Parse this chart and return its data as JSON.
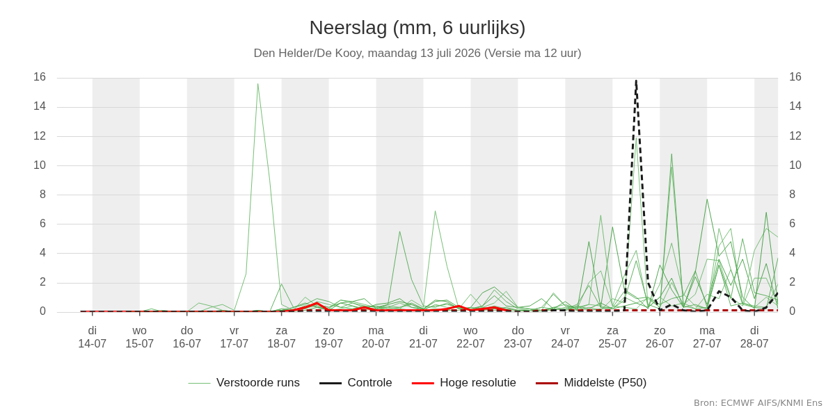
{
  "chart_data": {
    "type": "line",
    "title": "Neerslag (mm, 6 uurlijks)",
    "subtitle": "Den Helder/De Kooy, maandag 13 juli 2026 (Versie ma 12 uur)",
    "annotations": [
      "Bron: ECMWF AIFS/KNMI Ens"
    ],
    "x": [
      "2026-07-13T18:00",
      "2026-07-14T00:00",
      "2026-07-14T06:00",
      "2026-07-14T12:00",
      "2026-07-14T18:00",
      "2026-07-15T00:00",
      "2026-07-15T06:00",
      "2026-07-15T12:00",
      "2026-07-15T18:00",
      "2026-07-16T00:00",
      "2026-07-16T06:00",
      "2026-07-16T12:00",
      "2026-07-16T18:00",
      "2026-07-17T00:00",
      "2026-07-17T06:00",
      "2026-07-17T12:00",
      "2026-07-17T18:00",
      "2026-07-18T00:00",
      "2026-07-18T06:00",
      "2026-07-18T12:00",
      "2026-07-18T18:00",
      "2026-07-19T00:00",
      "2026-07-19T06:00",
      "2026-07-19T12:00",
      "2026-07-19T18:00",
      "2026-07-20T00:00",
      "2026-07-20T06:00",
      "2026-07-20T12:00",
      "2026-07-20T18:00",
      "2026-07-21T00:00",
      "2026-07-21T06:00",
      "2026-07-21T12:00",
      "2026-07-21T18:00",
      "2026-07-22T00:00",
      "2026-07-22T06:00",
      "2026-07-22T12:00",
      "2026-07-22T18:00",
      "2026-07-23T00:00",
      "2026-07-23T06:00",
      "2026-07-23T12:00",
      "2026-07-23T18:00",
      "2026-07-24T00:00",
      "2026-07-24T06:00",
      "2026-07-24T12:00",
      "2026-07-24T18:00",
      "2026-07-25T00:00",
      "2026-07-25T06:00",
      "2026-07-25T12:00",
      "2026-07-25T18:00",
      "2026-07-26T00:00",
      "2026-07-26T06:00",
      "2026-07-26T12:00",
      "2026-07-26T18:00",
      "2026-07-27T00:00",
      "2026-07-27T06:00",
      "2026-07-27T12:00",
      "2026-07-27T18:00",
      "2026-07-28T00:00",
      "2026-07-28T06:00",
      "2026-07-28T12:00"
    ],
    "xlim": [
      "2026-07-13T06:00",
      "2026-07-28T12:00"
    ],
    "xticks": [
      {
        "value": "2026-07-14",
        "label": "di 14-07"
      },
      {
        "value": "2026-07-15",
        "label": "wo 15-07"
      },
      {
        "value": "2026-07-16",
        "label": "do 16-07"
      },
      {
        "value": "2026-07-17",
        "label": "vr 17-07"
      },
      {
        "value": "2026-07-18",
        "label": "za 18-07"
      },
      {
        "value": "2026-07-19",
        "label": "zo 19-07"
      },
      {
        "value": "2026-07-20",
        "label": "ma 20-07"
      },
      {
        "value": "2026-07-21",
        "label": "di 21-07"
      },
      {
        "value": "2026-07-22",
        "label": "wo 22-07"
      },
      {
        "value": "2026-07-23",
        "label": "do 23-07"
      },
      {
        "value": "2026-07-24",
        "label": "vr 24-07"
      },
      {
        "value": "2026-07-25",
        "label": "za 25-07"
      },
      {
        "value": "2026-07-26",
        "label": "zo 26-07"
      },
      {
        "value": "2026-07-27",
        "label": "ma 27-07"
      },
      {
        "value": "2026-07-28",
        "label": "di 28-07"
      }
    ],
    "ylim": [
      0,
      16
    ],
    "yticks": [
      0,
      2,
      4,
      6,
      8,
      10,
      12,
      14,
      16
    ],
    "y2lim": [
      0,
      16
    ],
    "y2ticks": [
      0,
      2,
      4,
      6,
      8,
      10,
      12,
      14,
      16
    ],
    "bands": [
      {
        "axis": "x",
        "from": "2026-07-14",
        "to": "2026-07-15",
        "color": "#eeeeee"
      },
      {
        "axis": "x",
        "from": "2026-07-16",
        "to": "2026-07-17",
        "color": "#eeeeee"
      },
      {
        "axis": "x",
        "from": "2026-07-18",
        "to": "2026-07-19",
        "color": "#eeeeee"
      },
      {
        "axis": "x",
        "from": "2026-07-20",
        "to": "2026-07-21",
        "color": "#eeeeee"
      },
      {
        "axis": "x",
        "from": "2026-07-22",
        "to": "2026-07-23",
        "color": "#eeeeee"
      },
      {
        "axis": "x",
        "from": "2026-07-24",
        "to": "2026-07-25",
        "color": "#eeeeee"
      },
      {
        "axis": "x",
        "from": "2026-07-26",
        "to": "2026-07-27",
        "color": "#eeeeee"
      },
      {
        "axis": "x",
        "from": "2026-07-28",
        "to": "2026-07-28T12:00",
        "color": "#eeeeee"
      }
    ],
    "grid": "y",
    "legend": "bottom",
    "marker": "none",
    "series": [
      {
        "name": "Verstoorde runs",
        "color": "#66b866",
        "values": [
          null,
          null,
          null,
          null,
          0,
          0,
          0,
          0.1,
          0,
          0,
          0,
          0.3,
          0.5,
          0.1,
          2.6,
          15.6,
          9.0,
          0.5,
          0.1,
          0.2,
          0.5,
          0.3,
          0.8,
          0.6,
          0.3,
          0.2,
          0.4,
          0.3,
          0.5,
          0.1,
          0.2,
          0.1,
          0.4,
          0.1,
          0.3,
          0.2,
          0.1,
          0,
          0.1,
          0.3,
          0.2,
          0.1,
          0.3,
          0.5,
          0.4,
          0.2,
          1.0,
          0.6,
          0.9,
          0.3,
          2.0,
          0.5,
          1.2,
          3.6,
          3.5,
          1.0,
          0.4,
          2.3,
          2.3,
          0.5
        ]
      },
      {
        "color": "#4fa84f",
        "values": [
          null,
          null,
          null,
          null,
          0,
          0,
          0.2,
          0,
          0,
          0,
          0,
          0,
          0,
          0,
          0,
          0.1,
          0,
          1.9,
          0.3,
          0.5,
          0.9,
          0.7,
          0.3,
          0.6,
          0.4,
          0.3,
          0.5,
          5.5,
          2.2,
          0.4,
          0.3,
          0.6,
          0.2,
          0.1,
          0.4,
          1.5,
          0.7,
          0.2,
          0.1,
          0,
          0.3,
          0.2,
          0.5,
          1.8,
          0.3,
          0.2,
          0.8,
          3.5,
          0.5,
          0.2,
          10.8,
          0.3,
          0.5,
          0.2,
          3.2,
          0.4,
          0.6,
          0.3,
          0.2,
          3.7
        ]
      },
      {
        "color": "#66b866",
        "values": [
          null,
          null,
          null,
          null,
          0,
          0,
          0,
          0,
          0,
          0,
          0.6,
          0.4,
          0.1,
          0,
          0,
          0,
          0,
          0.2,
          0.1,
          1.0,
          0.4,
          0.2,
          0.8,
          0.7,
          0.5,
          0.3,
          0.1,
          0.2,
          0.8,
          0.3,
          6.9,
          3.1,
          0.2,
          1.2,
          0.3,
          0.6,
          1.4,
          0.3,
          0.2,
          0.1,
          1.3,
          0.4,
          0.2,
          0.5,
          6.6,
          0.4,
          0.3,
          0.2,
          1.0,
          0.3,
          9.9,
          0.4,
          0.2,
          0.3,
          5.7,
          2.9,
          0.5,
          0.3,
          1.0,
          0.4
        ]
      },
      {
        "color": "#3c9c3c",
        "values": [
          null,
          null,
          null,
          null,
          0,
          0,
          0,
          0,
          0,
          0,
          0,
          0,
          0.1,
          0,
          0,
          0,
          0,
          0.1,
          0.3,
          0.6,
          0.3,
          0.1,
          0.6,
          0.7,
          0.9,
          0.2,
          0.5,
          0.7,
          0.5,
          0.2,
          0.8,
          0.7,
          0.2,
          0.3,
          1.3,
          1.7,
          1.0,
          0.3,
          0.4,
          0.9,
          0.2,
          0.7,
          0.1,
          4.8,
          0.3,
          5.8,
          1.5,
          1.0,
          0.2,
          3.2,
          1.5,
          0.3,
          2.7,
          7.7,
          3.8,
          4.8,
          1.0,
          0.2,
          6.8,
          0.5
        ]
      },
      {
        "color": "#66b866",
        "values": [
          null,
          null,
          null,
          null,
          0,
          0,
          0,
          0,
          0,
          0,
          0,
          0,
          0,
          0,
          0,
          0,
          0,
          0,
          0.2,
          0.2,
          0.7,
          0.5,
          0.3,
          0.2,
          0.4,
          0.1,
          0.3,
          0.6,
          0.3,
          0.1,
          0.5,
          0.3,
          0.3,
          0.1,
          0.2,
          0.4,
          0.2,
          0.1,
          0,
          0.1,
          0.3,
          0.5,
          0.2,
          2.0,
          2.8,
          0.4,
          2.5,
          4.2,
          0.3,
          1.9,
          4.7,
          1.2,
          0.4,
          0.2,
          4.5,
          5.7,
          0.5,
          4.2,
          5.7,
          5.1
        ]
      },
      {
        "color": "#4fa84f",
        "values": [
          null,
          null,
          null,
          null,
          0,
          0,
          0,
          0,
          0,
          0,
          0,
          0,
          0,
          0,
          0,
          0.1,
          0,
          0.1,
          0,
          0.1,
          0.3,
          0.2,
          0.1,
          0.2,
          0.3,
          0.4,
          0.2,
          0.3,
          0.6,
          0.2,
          0.4,
          0.5,
          0.3,
          0.1,
          0.1,
          0.2,
          0.3,
          0.1,
          0.1,
          0.3,
          1.2,
          0.4,
          0.3,
          0.1,
          0.2,
          0.3,
          1.4,
          0.9,
          1.0,
          0.5,
          0.9,
          1.1,
          2.8,
          0.3,
          3.2,
          0.9,
          5.0,
          1.3,
          1.1,
          0.8
        ]
      },
      {
        "color": "#3c9c3c",
        "values": [
          null,
          null,
          null,
          null,
          0,
          0,
          0,
          0,
          0,
          0,
          0,
          0,
          0,
          0,
          0,
          0,
          0,
          0.2,
          0.1,
          0.4,
          0.5,
          0.3,
          0.6,
          0.4,
          0.2,
          0.5,
          0.6,
          0.9,
          0.3,
          0.2,
          0.7,
          0.8,
          0.3,
          0.2,
          0.4,
          1.1,
          0.4,
          0.3,
          0.2,
          0.1,
          0.2,
          0.1,
          0.4,
          0.2,
          0.6,
          0.2,
          0.4,
          0.6,
          0.3,
          1.0,
          2.3,
          0.3,
          2.4,
          0.5,
          3.6,
          1.8,
          3.6,
          0.9,
          3.3,
          0.2
        ]
      },
      {
        "color": "#66b866",
        "values": [
          null,
          null,
          null,
          null,
          0,
          0,
          0,
          0,
          0,
          0,
          0,
          0,
          0,
          0,
          0,
          0,
          0,
          0.1,
          0.1,
          0.3,
          0.4,
          0.1,
          0.2,
          0.4,
          0.1,
          0.2,
          0.3,
          0.2,
          0.1,
          0.1,
          0.2,
          0.1,
          0.1,
          0.3,
          0.2,
          0.1,
          0.2,
          0.1,
          0.1,
          0.1,
          0.1,
          0.3,
          0.1,
          0.3,
          0.1,
          0.9,
          0.6,
          11.9,
          0.3,
          1.0,
          0.4,
          0.6,
          0.2,
          1.2,
          0.9,
          2.9,
          0.6,
          0.4,
          0.3,
          1.9
        ]
      },
      {
        "name": "Controle",
        "color": "#1a1a1a",
        "line_style": "dashed",
        "values": [
          0,
          0,
          0,
          0,
          0,
          0,
          0,
          0,
          0,
          0,
          0,
          0,
          0,
          0,
          0,
          0,
          0,
          0,
          0,
          0,
          0,
          0,
          0,
          0,
          0,
          0,
          0,
          0,
          0,
          0,
          0,
          0,
          0,
          0,
          0,
          0,
          0,
          0,
          0,
          0,
          0.1,
          0.1,
          0,
          0,
          0,
          0,
          0.1,
          15.8,
          2.0,
          0.1,
          0.5,
          0.1,
          0,
          0.1,
          1.4,
          1.0,
          0.1,
          0,
          0.3,
          1.3
        ]
      },
      {
        "name": "Hoge resolutie",
        "color": "#ff0000",
        "line_style": "solid",
        "values": [
          0,
          0,
          0,
          0,
          0,
          0,
          0,
          0,
          0,
          0,
          0,
          0,
          0,
          0,
          0,
          0,
          0,
          0,
          0.1,
          0.3,
          0.6,
          0.1,
          0.1,
          0.1,
          0.3,
          0.1,
          0.1,
          0.1,
          0.1,
          0.1,
          0.1,
          0.2,
          0.4,
          0.1,
          0.2,
          0.3,
          0.1,
          null,
          null,
          null,
          null,
          null,
          null,
          null,
          null,
          null,
          null,
          null,
          null,
          null,
          null,
          null,
          null,
          null,
          null,
          null,
          null,
          null,
          null,
          null
        ]
      },
      {
        "name": "Middelste (P50)",
        "color": "#aa0000",
        "line_style": "dashed",
        "values": [
          0,
          0,
          0,
          0,
          0,
          0,
          0,
          0,
          0,
          0,
          0,
          0,
          0,
          0,
          0,
          0,
          0,
          0,
          0,
          0.1,
          0.1,
          0.1,
          0.1,
          0.1,
          0.1,
          0.1,
          0.1,
          0.1,
          0.1,
          0.1,
          0.1,
          0.1,
          0.1,
          0.1,
          0.1,
          0.1,
          0.1,
          0,
          0,
          0.1,
          0.1,
          0.1,
          0.1,
          0.1,
          0.1,
          0.1,
          0.1,
          0.1,
          0.1,
          0.1,
          0.1,
          0.1,
          0.1,
          0.1,
          0.1,
          0.1,
          0.1,
          0.1,
          0.1,
          0.1
        ]
      }
    ]
  }
}
